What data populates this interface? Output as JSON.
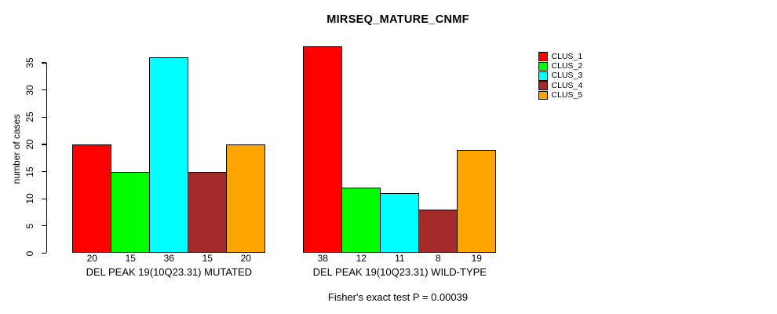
{
  "figure": {
    "title": "MIRSEQ_MATURE_CNMF",
    "y_axis_label": "number of cases",
    "footer": "Fisher's exact test P = 0.00039"
  },
  "chart_data": {
    "type": "bar",
    "title": "MIRSEQ_MATURE_CNMF",
    "xlabel": "",
    "ylabel": "number of cases",
    "ylim": [
      0,
      35
    ],
    "yticks": [
      0,
      5,
      10,
      15,
      20,
      25,
      30,
      35
    ],
    "grid": false,
    "legend_position": "top-right",
    "bar_value_labels_shown": true,
    "categories": [
      "DEL PEAK 19(10Q23.31) MUTATED",
      "DEL PEAK 19(10Q23.31) WILD-TYPE"
    ],
    "series": [
      {
        "name": "CLUS_1",
        "color": "#FF0000",
        "values": [
          20,
          38
        ]
      },
      {
        "name": "CLUS_2",
        "color": "#00FF00",
        "values": [
          15,
          12
        ]
      },
      {
        "name": "CLUS_3",
        "color": "#00FFFF",
        "values": [
          36,
          11
        ]
      },
      {
        "name": "CLUS_4",
        "color": "#A52A2A",
        "values": [
          15,
          8
        ]
      },
      {
        "name": "CLUS_5",
        "color": "#FFA500",
        "values": [
          20,
          19
        ]
      }
    ],
    "annotation": "Fisher's exact test P = 0.00039"
  }
}
